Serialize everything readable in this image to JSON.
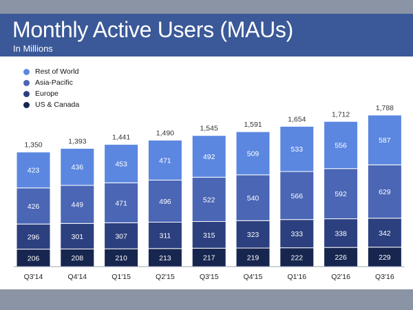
{
  "header": {
    "title": "Monthly Active Users (MAUs)",
    "subtitle": "In Millions"
  },
  "colors": {
    "header_bg": "#3b5998",
    "rest_of_world": "#5b87e0",
    "asia_pacific": "#4a66b5",
    "europe": "#2c3f7f",
    "us_canada": "#17264f",
    "segment_label_light": "#ffffff",
    "total_label": "#333333"
  },
  "chart_data": {
    "type": "bar",
    "stacked": true,
    "title": "Monthly Active Users (MAUs)",
    "subtitle": "In Millions",
    "categories": [
      "Q3'14",
      "Q4'14",
      "Q1'15",
      "Q2'15",
      "Q3'15",
      "Q4'15",
      "Q1'16",
      "Q2'16",
      "Q3'16"
    ],
    "series": [
      {
        "name": "US & Canada",
        "values": [
          206,
          208,
          210,
          213,
          217,
          219,
          222,
          226,
          229
        ]
      },
      {
        "name": "Europe",
        "values": [
          296,
          301,
          307,
          311,
          315,
          323,
          333,
          338,
          342
        ]
      },
      {
        "name": "Asia-Pacific",
        "values": [
          426,
          449,
          471,
          496,
          522,
          540,
          566,
          592,
          629
        ]
      },
      {
        "name": "Rest of World",
        "values": [
          423,
          436,
          453,
          471,
          492,
          509,
          533,
          556,
          587
        ]
      }
    ],
    "totals": [
      "1,350",
      "1,393",
      "1,441",
      "1,490",
      "1,545",
      "1,591",
      "1,654",
      "1,712",
      "1,788"
    ],
    "legend": {
      "position": "top-left",
      "entries": [
        "Rest of World",
        "Asia-Pacific",
        "Europe",
        "US & Canada"
      ]
    },
    "xlabel": "",
    "ylabel": "",
    "grid": false,
    "y_axis_visible": false
  }
}
